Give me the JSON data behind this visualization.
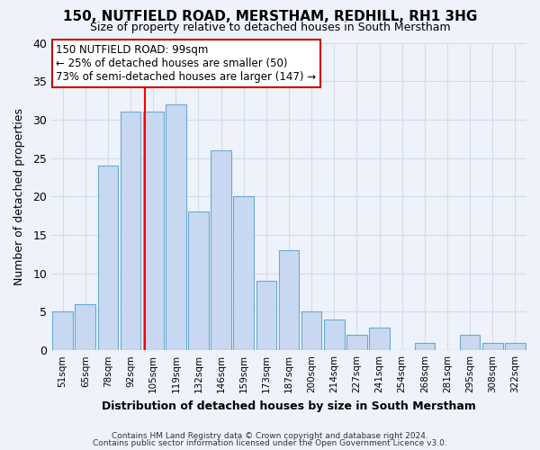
{
  "title": "150, NUTFIELD ROAD, MERSTHAM, REDHILL, RH1 3HG",
  "subtitle": "Size of property relative to detached houses in South Merstham",
  "xlabel": "Distribution of detached houses by size in South Merstham",
  "ylabel": "Number of detached properties",
  "footer1": "Contains HM Land Registry data © Crown copyright and database right 2024.",
  "footer2": "Contains public sector information licensed under the Open Government Licence v3.0.",
  "annotation_line1": "150 NUTFIELD ROAD: 99sqm",
  "annotation_line2": "← 25% of detached houses are smaller (50)",
  "annotation_line3": "73% of semi-detached houses are larger (147) →",
  "bar_labels": [
    "51sqm",
    "65sqm",
    "78sqm",
    "92sqm",
    "105sqm",
    "119sqm",
    "132sqm",
    "146sqm",
    "159sqm",
    "173sqm",
    "187sqm",
    "200sqm",
    "214sqm",
    "227sqm",
    "241sqm",
    "254sqm",
    "268sqm",
    "281sqm",
    "295sqm",
    "308sqm",
    "322sqm"
  ],
  "bar_values": [
    5,
    6,
    24,
    31,
    31,
    32,
    18,
    26,
    20,
    9,
    13,
    5,
    4,
    2,
    3,
    0,
    1,
    0,
    2,
    1,
    1
  ],
  "bar_color": "#c8d8f0",
  "bar_edge_color": "#6aaad4",
  "grid_color": "#d4dce8",
  "background_color": "#eef2fb",
  "axes_background": "#eef2fb",
  "red_line_x": 3.65,
  "annotation_box_color": "#ffffff",
  "annotation_box_edge": "#cc0000",
  "ylim": [
    0,
    40
  ],
  "yticks": [
    0,
    5,
    10,
    15,
    20,
    25,
    30,
    35,
    40
  ]
}
